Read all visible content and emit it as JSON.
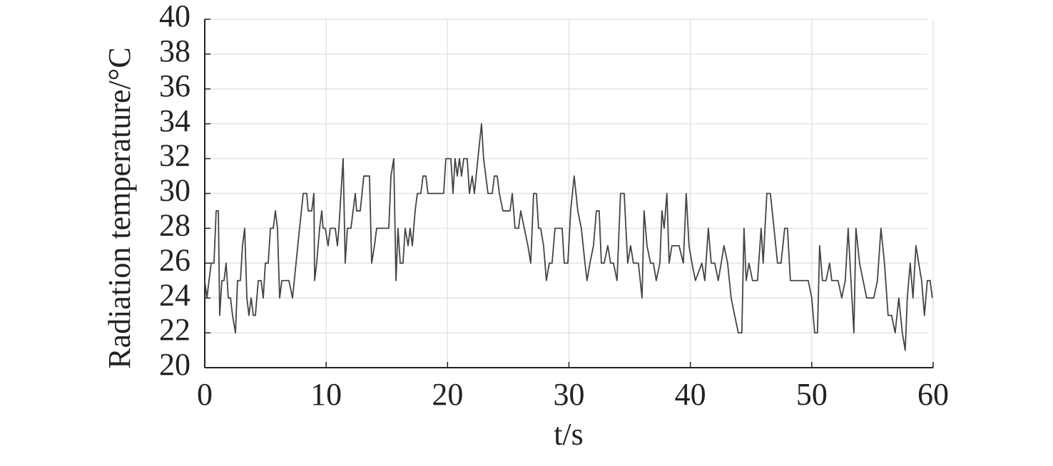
{
  "chart_data": {
    "type": "line",
    "y_label": "Radiation temperature/°C",
    "x_label": "t/s",
    "xlim": [
      0,
      60
    ],
    "xticks": [
      0,
      10,
      20,
      30,
      40,
      50,
      60
    ],
    "ylim": [
      20,
      40
    ],
    "yticks": [
      20,
      22,
      24,
      26,
      28,
      30,
      32,
      34,
      36,
      38,
      40
    ],
    "grid": true,
    "series": [
      {
        "color": "#444444",
        "x": [
          0,
          0.18,
          0.35,
          0.53,
          0.76,
          0.94,
          1.12,
          1.23,
          1.41,
          1.59,
          1.76,
          1.94,
          2.12,
          2.29,
          2.53,
          2.7,
          2.94,
          3.11,
          3.29,
          3.47,
          3.64,
          3.82,
          4.0,
          4.17,
          4.41,
          4.64,
          4.82,
          4.99,
          5.23,
          5.41,
          5.64,
          5.82,
          5.99,
          6.17,
          6.35,
          6.93,
          7.23,
          7.52,
          7.81,
          8.11,
          8.4,
          8.52,
          8.81,
          8.99,
          9.05,
          9.22,
          9.46,
          9.64,
          9.75,
          9.93,
          10.16,
          10.34,
          10.75,
          10.93,
          11.05,
          11.22,
          11.4,
          11.57,
          11.75,
          12.04,
          12.22,
          12.4,
          12.51,
          12.81,
          13.1,
          13.57,
          13.75,
          13.98,
          14.16,
          15.16,
          15.34,
          15.57,
          15.75,
          15.92,
          16.1,
          16.33,
          16.51,
          16.75,
          16.92,
          17.1,
          17.33,
          17.51,
          17.8,
          17.98,
          18.21,
          18.39,
          19.68,
          19.86,
          20.27,
          20.45,
          20.62,
          20.8,
          20.98,
          21.15,
          21.33,
          21.62,
          21.8,
          22.03,
          22.21,
          22.5,
          22.8,
          22.97,
          23.15,
          23.33,
          23.68,
          23.86,
          24.09,
          24.27,
          24.56,
          25.15,
          25.33,
          25.56,
          25.85,
          26.03,
          26.32,
          26.62,
          26.85,
          27.09,
          27.32,
          27.5,
          27.67,
          27.91,
          28.14,
          28.38,
          28.61,
          28.85,
          29.44,
          29.61,
          29.91,
          30.14,
          30.43,
          30.73,
          31.02,
          31.32,
          31.49,
          31.73,
          32.02,
          32.26,
          32.49,
          32.67,
          32.9,
          33.2,
          33.43,
          33.67,
          33.96,
          34.25,
          34.55,
          34.84,
          35.08,
          35.31,
          35.72,
          36.02,
          36.19,
          36.43,
          36.72,
          36.96,
          37.19,
          37.49,
          37.66,
          37.84,
          38.07,
          38.25,
          38.48,
          39.07,
          39.42,
          39.66,
          39.89,
          40.13,
          40.42,
          40.95,
          41.19,
          41.48,
          41.72,
          42.01,
          42.3,
          42.54,
          42.77,
          43.07,
          43.36,
          43.65,
          43.95,
          44.24,
          44.42,
          44.6,
          44.83,
          45.12,
          45.53,
          45.83,
          46.0,
          46.3,
          46.59,
          46.89,
          47.18,
          47.47,
          47.77,
          48.0,
          48.24,
          48.53,
          48.82,
          49.71,
          50.0,
          50.24,
          50.47,
          50.65,
          50.88,
          51.18,
          51.47,
          51.65,
          52.17,
          52.47,
          52.76,
          53.0,
          53.23,
          53.47,
          53.64,
          53.94,
          54.23,
          54.52,
          55.11,
          55.41,
          55.7,
          55.99,
          56.29,
          56.58,
          56.87,
          57.17,
          57.46,
          57.7,
          57.87,
          58.11,
          58.34,
          58.58,
          58.81,
          59.05,
          59.28,
          59.52,
          59.75,
          59.93
        ],
        "values": [
          25,
          24,
          25,
          26,
          26,
          29,
          29,
          23,
          25,
          25,
          26,
          24,
          24,
          23,
          22,
          25,
          25,
          27,
          28,
          24,
          23,
          24,
          23,
          23,
          25,
          25,
          24,
          26,
          26,
          28,
          28,
          29,
          28,
          24,
          25,
          25,
          24,
          26,
          28,
          30,
          30,
          29,
          29,
          30,
          25,
          26,
          28,
          29,
          28,
          28,
          27,
          28,
          28,
          27,
          28,
          30,
          32,
          26,
          28,
          28,
          29,
          30,
          29,
          29,
          31,
          31,
          26,
          27,
          28,
          28,
          31,
          32,
          25,
          28,
          26,
          26,
          28,
          27,
          28,
          27,
          29,
          30,
          30,
          31,
          31,
          30,
          30,
          32,
          32,
          30,
          32,
          31,
          32,
          31,
          32,
          32,
          30,
          31,
          30,
          32,
          34,
          32,
          31,
          30,
          30,
          31,
          31,
          30,
          29,
          29,
          30,
          28,
          28,
          29,
          28,
          27,
          26,
          30,
          30,
          28,
          28,
          27,
          25,
          26,
          26,
          28,
          28,
          26,
          26,
          29,
          31,
          29,
          28,
          26,
          25,
          26,
          27,
          29,
          29,
          26,
          26,
          27,
          26,
          26,
          25,
          30,
          30,
          26,
          27,
          26,
          26,
          24,
          29,
          27,
          26,
          26,
          25,
          26,
          29,
          28,
          30,
          26,
          27,
          27,
          26,
          30,
          27,
          26,
          25,
          26,
          25,
          28,
          26,
          26,
          25,
          26,
          27,
          26,
          24,
          23,
          22,
          22,
          28,
          25,
          26,
          25,
          25,
          28,
          26,
          30,
          30,
          28,
          26,
          26,
          28,
          28,
          25,
          25,
          25,
          25,
          24,
          22,
          22,
          27,
          25,
          25,
          26,
          25,
          25,
          24,
          25,
          28,
          25,
          22,
          28,
          26,
          25,
          24,
          24,
          25,
          28,
          26,
          23,
          23,
          22,
          24,
          22,
          21,
          24,
          26,
          24,
          27,
          26,
          25,
          23,
          25,
          25,
          24
        ]
      }
    ]
  }
}
